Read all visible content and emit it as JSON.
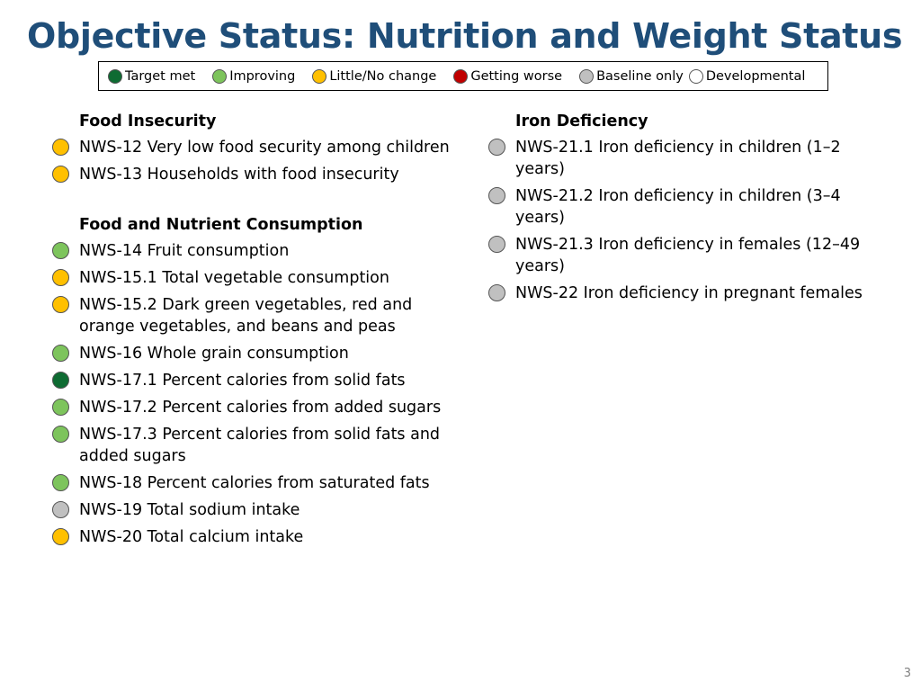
{
  "title": "Objective Status: Nutrition and Weight Status",
  "colors": {
    "title": "#1f4e79",
    "target_met": "#0e6b32",
    "improving": "#7dc45c",
    "little_no_change": "#ffc000",
    "getting_worse": "#c00000",
    "baseline_only": "#c0c0c0",
    "developmental": "#ffffff"
  },
  "legend": [
    {
      "label": "Target met",
      "status": "target_met"
    },
    {
      "label": "Improving",
      "status": "improving"
    },
    {
      "label": "Little/No change",
      "status": "little_no_change"
    },
    {
      "label": "Getting worse",
      "status": "getting_worse"
    },
    {
      "label": "Baseline only",
      "status": "baseline_only"
    },
    {
      "label": "Developmental",
      "status": "developmental"
    }
  ],
  "left_column": [
    {
      "heading": "Food Insecurity",
      "items": [
        {
          "text": "NWS-12 Very low food security among children",
          "status": "little_no_change"
        },
        {
          "text": "NWS-13 Households with food insecurity",
          "status": "little_no_change"
        }
      ]
    },
    {
      "heading": "Food and Nutrient Consumption",
      "items": [
        {
          "text": "NWS-14 Fruit consumption",
          "status": "improving"
        },
        {
          "text": "NWS-15.1 Total vegetable consumption",
          "status": "little_no_change"
        },
        {
          "text": "NWS-15.2 Dark green vegetables, red and orange vegetables, and beans and peas",
          "status": "little_no_change"
        },
        {
          "text": "NWS-16 Whole grain consumption",
          "status": "improving"
        },
        {
          "text": "NWS-17.1 Percent calories from solid fats",
          "status": "target_met"
        },
        {
          "text": "NWS-17.2 Percent calories from added sugars",
          "status": "improving"
        },
        {
          "text": "NWS-17.3 Percent calories from solid fats and added sugars",
          "status": "improving"
        },
        {
          "text": "NWS-18 Percent calories from saturated fats",
          "status": "improving"
        },
        {
          "text": "NWS-19 Total sodium intake",
          "status": "baseline_only"
        },
        {
          "text": "NWS-20 Total calcium intake",
          "status": "little_no_change"
        }
      ]
    }
  ],
  "right_column": [
    {
      "heading": "Iron Deficiency",
      "items": [
        {
          "text": "NWS-21.1 Iron deficiency in children (1–2 years)",
          "status": "baseline_only"
        },
        {
          "text": "NWS-21.2 Iron deficiency in children (3–4 years)",
          "status": "baseline_only"
        },
        {
          "text": "NWS-21.3 Iron deficiency in females (12–49 years)",
          "status": "baseline_only"
        },
        {
          "text": "NWS-22 Iron deficiency in pregnant females",
          "status": "baseline_only"
        }
      ]
    }
  ],
  "page_number": "3"
}
